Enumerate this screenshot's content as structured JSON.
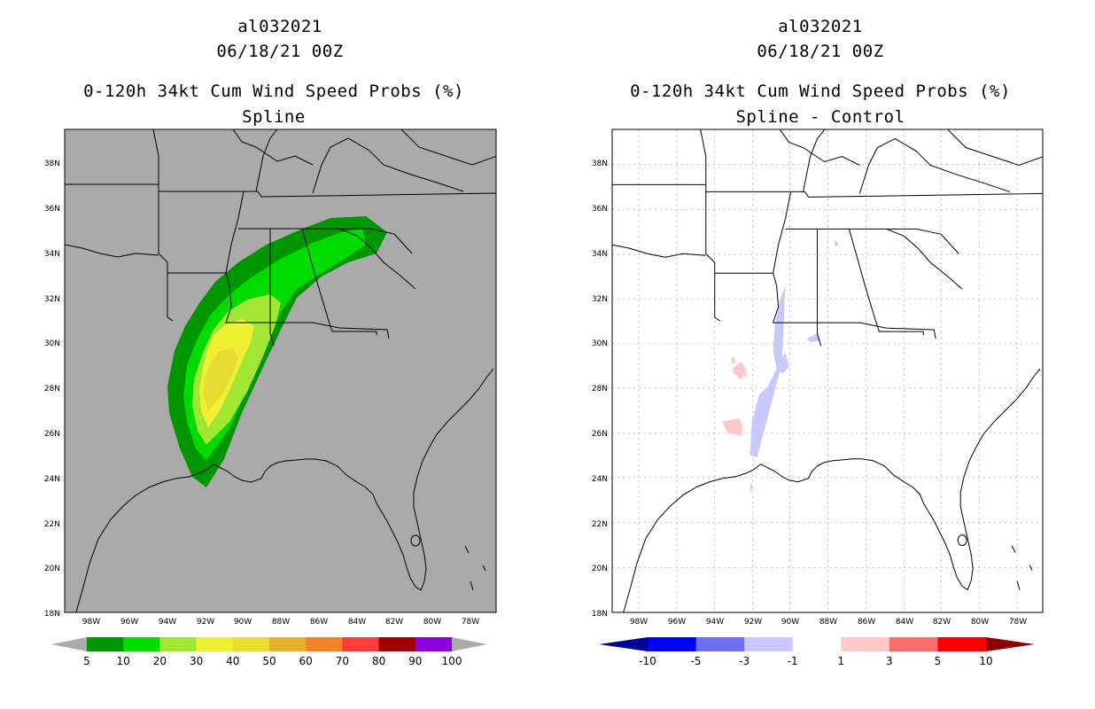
{
  "left_panel": {
    "storm_id": "al032021",
    "datetime": "06/18/21 00Z",
    "product": "0-120h 34kt Cum Wind Speed Probs (%)",
    "subtitle": "Spline",
    "colorbar": {
      "labels": [
        "5",
        "10",
        "20",
        "30",
        "40",
        "50",
        "60",
        "70",
        "80",
        "90",
        "100"
      ],
      "colors": [
        "#009600",
        "#00dc00",
        "#a0e632",
        "#f0f032",
        "#e6dc32",
        "#e6af2d",
        "#f08228",
        "#fa3c3c",
        "#a00000",
        "#8c00dc"
      ],
      "end_color": "#aaaaaa"
    }
  },
  "right_panel": {
    "storm_id": "al032021",
    "datetime": "06/18/21 00Z",
    "product": "0-120h 34kt Cum Wind Speed Probs (%)",
    "subtitle": "Spline - Control",
    "colorbar": {
      "labels": [
        "-10",
        "-5",
        "-3",
        "-1",
        "1",
        "3",
        "5",
        "10"
      ],
      "colors": [
        "#0000ff",
        "#6e6ef0",
        "#c8c8ff",
        "#ffffff",
        "#ffc8c8",
        "#fa6e6e",
        "#ff0000"
      ],
      "end_low": "#000096",
      "end_high": "#8c0000"
    }
  },
  "lat_labels": [
    "38N",
    "36N",
    "34N",
    "32N",
    "30N",
    "28N",
    "26N",
    "24N",
    "22N",
    "20N",
    "18N"
  ],
  "lon_labels": [
    "98W",
    "96W",
    "94W",
    "92W",
    "90W",
    "88W",
    "86W",
    "84W",
    "82W",
    "80W",
    "78W"
  ],
  "colors": {
    "ocean_land_bg": "#aaaaaa",
    "coast": "#000000",
    "grid": "#bbbbbb"
  }
}
